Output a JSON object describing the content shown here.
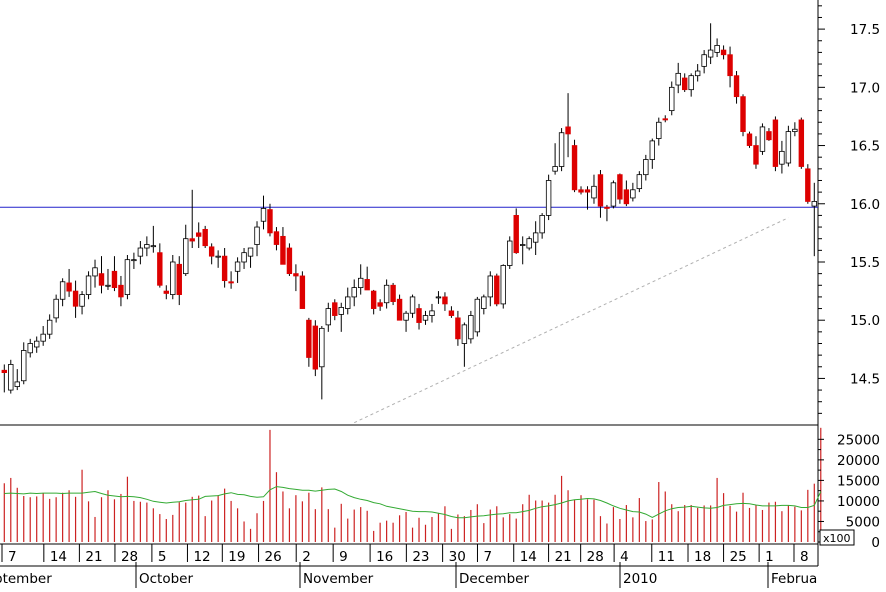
{
  "chart_data": [
    {
      "type": "candlestick",
      "title": "",
      "ylim": [
        14.1,
        17.75
      ],
      "y_ticks": [
        "17.5",
        "17.0",
        "16.5",
        "16.0",
        "15.5",
        "15.0",
        "14.5"
      ],
      "up_color": "#ffffff",
      "down_color": "#dd0000",
      "horizontal_line": 15.97,
      "horizontal_line_color": "#2222cc",
      "trendline": {
        "from": [
          54,
          14.12
        ],
        "to": [
          121,
          15.88
        ],
        "color": "#b0b0b0",
        "style": "dashed"
      },
      "ohlc": [
        [
          14.57,
          14.62,
          14.38,
          14.55
        ],
        [
          14.4,
          14.66,
          14.37,
          14.62
        ],
        [
          14.43,
          14.58,
          14.4,
          14.47
        ],
        [
          14.48,
          14.81,
          14.45,
          14.74
        ],
        [
          14.72,
          14.84,
          14.68,
          14.8
        ],
        [
          14.77,
          14.86,
          14.72,
          14.82
        ],
        [
          14.82,
          14.95,
          14.78,
          14.88
        ],
        [
          14.88,
          15.05,
          14.84,
          15.0
        ],
        [
          15.02,
          15.22,
          14.98,
          15.18
        ],
        [
          15.18,
          15.36,
          15.12,
          15.33
        ],
        [
          15.32,
          15.44,
          15.2,
          15.25
        ],
        [
          15.25,
          15.34,
          15.02,
          15.12
        ],
        [
          15.12,
          15.25,
          15.05,
          15.22
        ],
        [
          15.22,
          15.42,
          15.18,
          15.38
        ],
        [
          15.38,
          15.52,
          15.28,
          15.45
        ],
        [
          15.4,
          15.55,
          15.23,
          15.3
        ],
        [
          15.3,
          15.44,
          15.26,
          15.3
        ],
        [
          15.42,
          15.55,
          15.25,
          15.28
        ],
        [
          15.3,
          15.38,
          15.12,
          15.2
        ],
        [
          15.22,
          15.56,
          15.18,
          15.52
        ],
        [
          15.52,
          15.58,
          15.44,
          15.52
        ],
        [
          15.55,
          15.68,
          15.48,
          15.62
        ],
        [
          15.62,
          15.72,
          15.55,
          15.65
        ],
        [
          15.64,
          15.81,
          15.58,
          15.64
        ],
        [
          15.58,
          15.66,
          15.28,
          15.3
        ],
        [
          15.25,
          15.3,
          15.18,
          15.23
        ],
        [
          15.22,
          15.56,
          15.18,
          15.5
        ],
        [
          15.48,
          15.55,
          15.13,
          15.22
        ],
        [
          15.4,
          15.82,
          15.38,
          15.7
        ],
        [
          15.7,
          16.12,
          15.62,
          15.68
        ],
        [
          15.75,
          15.84,
          15.62,
          15.72
        ],
        [
          15.78,
          15.81,
          15.62,
          15.64
        ],
        [
          15.63,
          15.66,
          15.48,
          15.55
        ],
        [
          15.55,
          15.6,
          15.45,
          15.55
        ],
        [
          15.55,
          15.62,
          15.28,
          15.34
        ],
        [
          15.33,
          15.42,
          15.27,
          15.32
        ],
        [
          15.42,
          15.54,
          15.32,
          15.5
        ],
        [
          15.5,
          15.62,
          15.44,
          15.58
        ],
        [
          15.55,
          15.62,
          15.45,
          15.62
        ],
        [
          15.65,
          15.85,
          15.55,
          15.8
        ],
        [
          15.85,
          16.07,
          15.78,
          15.96
        ],
        [
          15.95,
          16.0,
          15.72,
          15.75
        ],
        [
          15.76,
          15.8,
          15.6,
          15.65
        ],
        [
          15.72,
          15.8,
          15.48,
          15.48
        ],
        [
          15.62,
          15.66,
          15.38,
          15.4
        ],
        [
          15.4,
          15.48,
          15.25,
          15.38
        ],
        [
          15.38,
          15.42,
          15.1,
          15.1
        ],
        [
          15.0,
          15.02,
          14.6,
          14.68
        ],
        [
          14.95,
          15.0,
          14.52,
          14.58
        ],
        [
          14.6,
          14.95,
          14.32,
          14.93
        ],
        [
          14.96,
          15.15,
          14.9,
          15.1
        ],
        [
          15.15,
          15.18,
          15.0,
          15.04
        ],
        [
          15.05,
          15.15,
          14.9,
          15.11
        ],
        [
          15.1,
          15.28,
          15.05,
          15.2
        ],
        [
          15.2,
          15.35,
          15.12,
          15.28
        ],
        [
          15.28,
          15.48,
          15.22,
          15.36
        ],
        [
          15.35,
          15.46,
          15.26,
          15.26
        ],
        [
          15.25,
          15.26,
          15.05,
          15.1
        ],
        [
          15.15,
          15.18,
          15.08,
          15.12
        ],
        [
          15.15,
          15.35,
          15.1,
          15.3
        ],
        [
          15.3,
          15.32,
          15.13,
          15.16
        ],
        [
          15.18,
          15.22,
          15.0,
          15.0
        ],
        [
          15.0,
          15.08,
          14.9,
          15.06
        ],
        [
          15.06,
          15.22,
          15.02,
          15.2
        ],
        [
          15.1,
          15.14,
          14.92,
          14.98
        ],
        [
          15.0,
          15.08,
          14.96,
          15.04
        ],
        [
          15.04,
          15.14,
          14.98,
          15.08
        ],
        [
          15.2,
          15.25,
          15.14,
          15.2
        ],
        [
          15.2,
          15.24,
          15.08,
          15.14
        ],
        [
          15.08,
          15.12,
          15.02,
          15.04
        ],
        [
          15.02,
          15.08,
          14.78,
          14.84
        ],
        [
          14.8,
          14.98,
          14.6,
          14.96
        ],
        [
          14.84,
          15.08,
          14.8,
          15.04
        ],
        [
          14.9,
          15.2,
          14.86,
          15.18
        ],
        [
          15.1,
          15.22,
          15.05,
          15.2
        ],
        [
          15.2,
          15.42,
          15.12,
          15.38
        ],
        [
          15.38,
          15.4,
          15.12,
          15.14
        ],
        [
          15.14,
          15.48,
          15.1,
          15.47
        ],
        [
          15.47,
          15.72,
          15.44,
          15.68
        ],
        [
          15.9,
          15.96,
          15.57,
          15.58
        ],
        [
          15.65,
          15.72,
          15.48,
          15.65
        ],
        [
          15.62,
          15.72,
          15.6,
          15.7
        ],
        [
          15.67,
          15.85,
          15.56,
          15.75
        ],
        [
          15.75,
          15.92,
          15.7,
          15.9
        ],
        [
          15.9,
          16.25,
          15.86,
          16.2
        ],
        [
          16.28,
          16.52,
          16.25,
          16.32
        ],
        [
          16.32,
          16.65,
          16.28,
          16.61
        ],
        [
          16.66,
          16.95,
          16.4,
          16.6
        ],
        [
          16.5,
          16.55,
          16.1,
          16.12
        ],
        [
          16.12,
          16.15,
          16.08,
          16.1
        ],
        [
          16.12,
          16.15,
          15.95,
          16.1
        ],
        [
          16.05,
          16.25,
          16.0,
          16.15
        ],
        [
          16.25,
          16.29,
          15.88,
          15.98
        ],
        [
          15.97,
          15.99,
          15.85,
          15.96
        ],
        [
          15.98,
          16.2,
          15.96,
          16.18
        ],
        [
          16.25,
          16.26,
          16.0,
          16.04
        ],
        [
          16.12,
          16.2,
          15.98,
          16.0
        ],
        [
          16.05,
          16.18,
          16.02,
          16.12
        ],
        [
          16.13,
          16.28,
          16.1,
          16.25
        ],
        [
          16.25,
          16.42,
          16.2,
          16.38
        ],
        [
          16.38,
          16.56,
          16.3,
          16.54
        ],
        [
          16.56,
          16.74,
          16.5,
          16.7
        ],
        [
          16.73,
          16.76,
          16.7,
          16.72
        ],
        [
          16.8,
          17.05,
          16.76,
          17.0
        ],
        [
          17.02,
          17.21,
          16.95,
          17.12
        ],
        [
          17.08,
          17.12,
          16.96,
          16.98
        ],
        [
          16.98,
          17.12,
          16.92,
          17.1
        ],
        [
          17.1,
          17.2,
          17.05,
          17.14
        ],
        [
          17.18,
          17.32,
          17.12,
          17.28
        ],
        [
          17.26,
          17.55,
          17.2,
          17.32
        ],
        [
          17.3,
          17.42,
          17.26,
          17.36
        ],
        [
          17.32,
          17.36,
          17.24,
          17.28
        ],
        [
          17.28,
          17.35,
          17.0,
          17.1
        ],
        [
          17.1,
          17.14,
          16.86,
          16.92
        ],
        [
          16.92,
          16.94,
          16.58,
          16.62
        ],
        [
          16.6,
          16.62,
          16.48,
          16.5
        ],
        [
          16.5,
          16.58,
          16.3,
          16.34
        ],
        [
          16.45,
          16.69,
          16.42,
          16.66
        ],
        [
          16.62,
          16.65,
          16.54,
          16.55
        ],
        [
          16.72,
          16.75,
          16.28,
          16.32
        ],
        [
          16.34,
          16.54,
          16.26,
          16.45
        ],
        [
          16.35,
          16.67,
          16.32,
          16.62
        ],
        [
          16.62,
          16.7,
          16.58,
          16.64
        ],
        [
          16.72,
          16.74,
          16.3,
          16.32
        ],
        [
          16.3,
          16.34,
          16.0,
          16.02
        ],
        [
          15.98,
          16.18,
          15.55,
          16.02
        ]
      ],
      "volume": {
        "axis_ticks": [
          "25000",
          "20000",
          "15000",
          "10000",
          "5000",
          "0"
        ],
        "axis_max": 28000,
        "multiplier_label": "x100",
        "bar_color": "#cc2222",
        "ma_color": "#33aa33",
        "values": [
          14300,
          15600,
          13200,
          11200,
          10900,
          11100,
          11900,
          10500,
          10900,
          12000,
          12600,
          11000,
          17600,
          9900,
          6100,
          10900,
          12600,
          10400,
          11700,
          15900,
          10000,
          9800,
          9600,
          8200,
          6800,
          5600,
          6600,
          9700,
          9600,
          11000,
          11300,
          6300,
          10100,
          11400,
          13000,
          10000,
          8200,
          5000,
          3200,
          7000,
          10000,
          27300,
          17000,
          12300,
          8200,
          11400,
          9900,
          12000,
          8000,
          13300,
          8000,
          3500,
          9300,
          5700,
          7900,
          8500,
          7600,
          2700,
          4700,
          5200,
          4700,
          6500,
          7300,
          3500,
          5900,
          4200,
          6100,
          7000,
          8700,
          3200,
          6700,
          6300,
          7800,
          9200,
          4600,
          7900,
          8700,
          6000,
          6800,
          5700,
          9200,
          11500,
          10100,
          10100,
          9600,
          11500,
          16100,
          12600,
          10300,
          11400,
          10400,
          10300,
          6300,
          4500,
          8500,
          5600,
          9000,
          6000,
          10700,
          5100,
          5500,
          14600,
          12300,
          9200,
          7500,
          9000,
          9000,
          8300,
          8900,
          8900,
          15600,
          11900,
          8800,
          7400,
          12000,
          8300,
          9000,
          7800,
          9600,
          9800,
          7500,
          8900,
          8600,
          7700,
          12700,
          14200,
          27800
        ],
        "ma": [
          11800,
          11900,
          11800,
          11700,
          11900,
          11800,
          11900,
          11900,
          11900,
          11800,
          11900,
          11900,
          11900,
          12100,
          12300,
          11800,
          11400,
          11200,
          11000,
          11100,
          11000,
          10800,
          10400,
          9900,
          9700,
          9500,
          9700,
          9800,
          10100,
          10300,
          10400,
          11100,
          11200,
          11300,
          11700,
          12000,
          11600,
          11500,
          11100,
          10900,
          11000,
          12700,
          13500,
          13300,
          13000,
          12800,
          12600,
          12600,
          12400,
          12600,
          12800,
          12900,
          12300,
          11400,
          10800,
          10400,
          10100,
          9600,
          9300,
          8700,
          8400,
          8100,
          7800,
          7500,
          7400,
          7400,
          7300,
          7000,
          6700,
          6200,
          5900,
          5900,
          6100,
          6300,
          6400,
          6600,
          6800,
          6900,
          7100,
          7100,
          7400,
          7700,
          8200,
          8600,
          8800,
          9100,
          9500,
          10000,
          10300,
          10400,
          10600,
          10500,
          10100,
          9500,
          8800,
          8200,
          7800,
          7400,
          7300,
          6800,
          6000,
          6800,
          7600,
          8100,
          8400,
          8500,
          8700,
          8500,
          8300,
          8200,
          8400,
          8900,
          9100,
          9300,
          9400,
          9300,
          9000,
          8800,
          8800,
          8800,
          8900,
          8900,
          8800,
          8400,
          8400,
          8900,
          12300
        ]
      },
      "x_axis": {
        "day_labels": [
          "7",
          "14",
          "21",
          "28",
          "5",
          "12",
          "19",
          "26",
          "2",
          "9",
          "16",
          "23",
          "30",
          "7",
          "14",
          "21",
          "28",
          "4",
          "11",
          "18",
          "25",
          "1",
          "8"
        ],
        "month_labels": [
          "ptember",
          "October",
          "November",
          "December",
          "2010",
          "Februa"
        ]
      }
    }
  ]
}
